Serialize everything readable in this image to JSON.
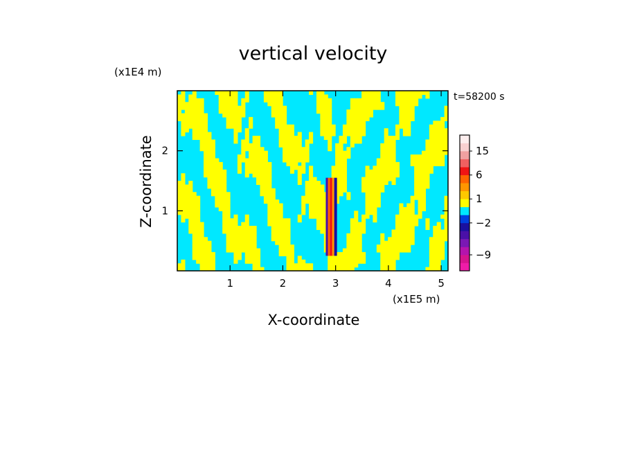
{
  "chart_data": {
    "type": "heatmap",
    "title": "vertical velocity",
    "xlabel": "X-coordinate",
    "ylabel": "Z-coordinate",
    "x_unit": "(x1E5 m)",
    "y_unit": "(x1E4 m)",
    "time_label": "t=58200 s",
    "xlim": [
      0,
      5.13
    ],
    "ylim": [
      0,
      3.0
    ],
    "x_ticks": [
      1,
      2,
      3,
      4,
      5
    ],
    "y_ticks": [
      1,
      2
    ],
    "x_tick_labels": [
      "1",
      "2",
      "3",
      "4",
      "5"
    ],
    "y_tick_labels": [
      "1",
      "2"
    ],
    "dominant_colors": {
      "positive": "#ffff00",
      "negative": "#00e8ff"
    },
    "jet_center_x": 2.92,
    "colorbar": {
      "levels": [
        -13,
        -11,
        -9,
        -7,
        -5,
        -3,
        -2,
        -1,
        0,
        1,
        2,
        4,
        6,
        9,
        12,
        15,
        20,
        26
      ],
      "colors": [
        "#ee1ca8",
        "#d5148f",
        "#b414ad",
        "#7a18b4",
        "#4a10a8",
        "#1a10a0",
        "#0040e0",
        "#00e8ff",
        "#ffff00",
        "#ffc800",
        "#ff9600",
        "#ff6400",
        "#f01414",
        "#f06060",
        "#f0a0a0",
        "#f8d0d0",
        "#fdeeee"
      ],
      "tick_values": [
        15,
        6,
        1,
        -2,
        -9
      ],
      "tick_labels": [
        "15",
        "6",
        "1",
        "−2",
        "−9"
      ]
    }
  }
}
